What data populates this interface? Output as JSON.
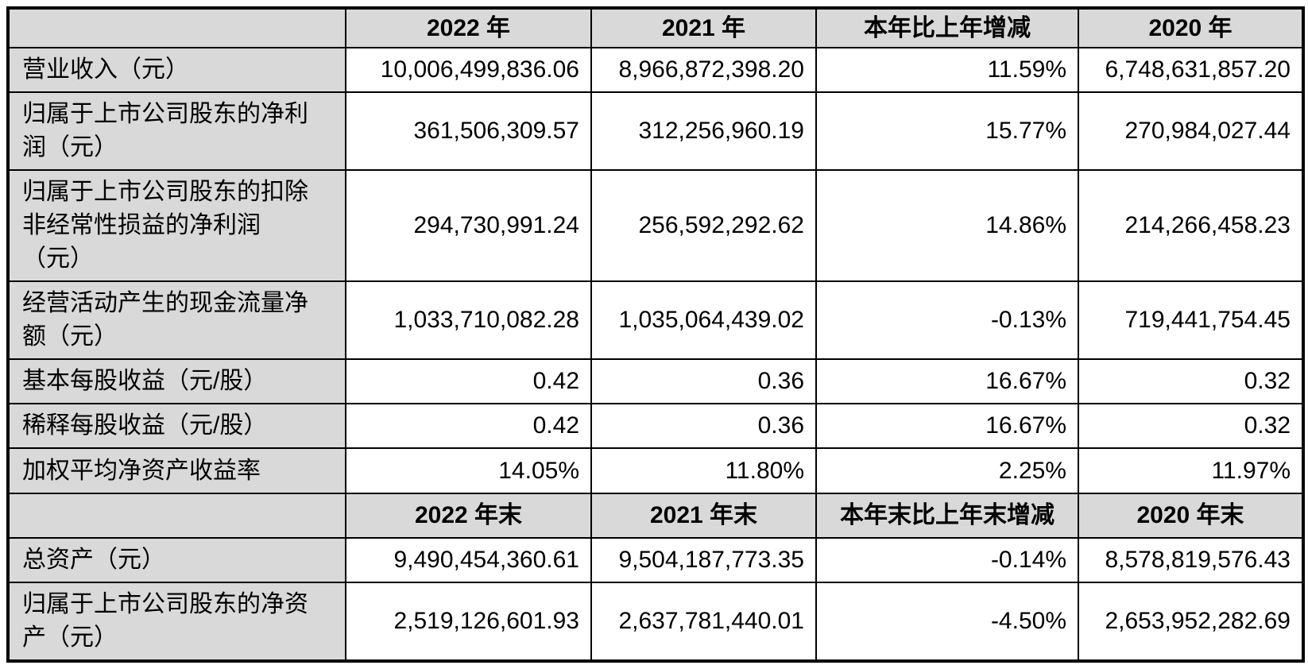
{
  "theme": {
    "page_bg": "#ffffff",
    "cell_bg": "#ffffff",
    "header_bg": "#d9d9d9",
    "border_color": "#000000",
    "text_color": "#000000"
  },
  "table": {
    "sections": [
      {
        "headers": [
          "",
          "2022 年",
          "2021 年",
          "本年比上年增减",
          "2020 年"
        ],
        "rows": [
          {
            "label": "营业收入（元）",
            "values": [
              "10,006,499,836.06",
              "8,966,872,398.20",
              "11.59%",
              "6,748,631,857.20"
            ]
          },
          {
            "label": "归属于上市公司股东的净利\n润（元）",
            "values": [
              "361,506,309.57",
              "312,256,960.19",
              "15.77%",
              "270,984,027.44"
            ]
          },
          {
            "label": "归属于上市公司股东的扣除\n非经常性损益的净利润\n（元）",
            "values": [
              "294,730,991.24",
              "256,592,292.62",
              "14.86%",
              "214,266,458.23"
            ]
          },
          {
            "label": "经营活动产生的现金流量净\n额（元）",
            "values": [
              "1,033,710,082.28",
              "1,035,064,439.02",
              "-0.13%",
              "719,441,754.45"
            ]
          },
          {
            "label": "基本每股收益（元/股）",
            "values": [
              "0.42",
              "0.36",
              "16.67%",
              "0.32"
            ]
          },
          {
            "label": "稀释每股收益（元/股）",
            "values": [
              "0.42",
              "0.36",
              "16.67%",
              "0.32"
            ]
          },
          {
            "label": "加权平均净资产收益率",
            "values": [
              "14.05%",
              "11.80%",
              "2.25%",
              "11.97%"
            ]
          }
        ]
      },
      {
        "headers": [
          "",
          "2022 年末",
          "2021 年末",
          "本年末比上年末增减",
          "2020 年末"
        ],
        "rows": [
          {
            "label": "总资产（元）",
            "values": [
              "9,490,454,360.61",
              "9,504,187,773.35",
              "-0.14%",
              "8,578,819,576.43"
            ]
          },
          {
            "label": "归属于上市公司股东的净资\n产（元）",
            "values": [
              "2,519,126,601.93",
              "2,637,781,440.01",
              "-4.50%",
              "2,653,952,282.69"
            ]
          }
        ]
      }
    ]
  }
}
